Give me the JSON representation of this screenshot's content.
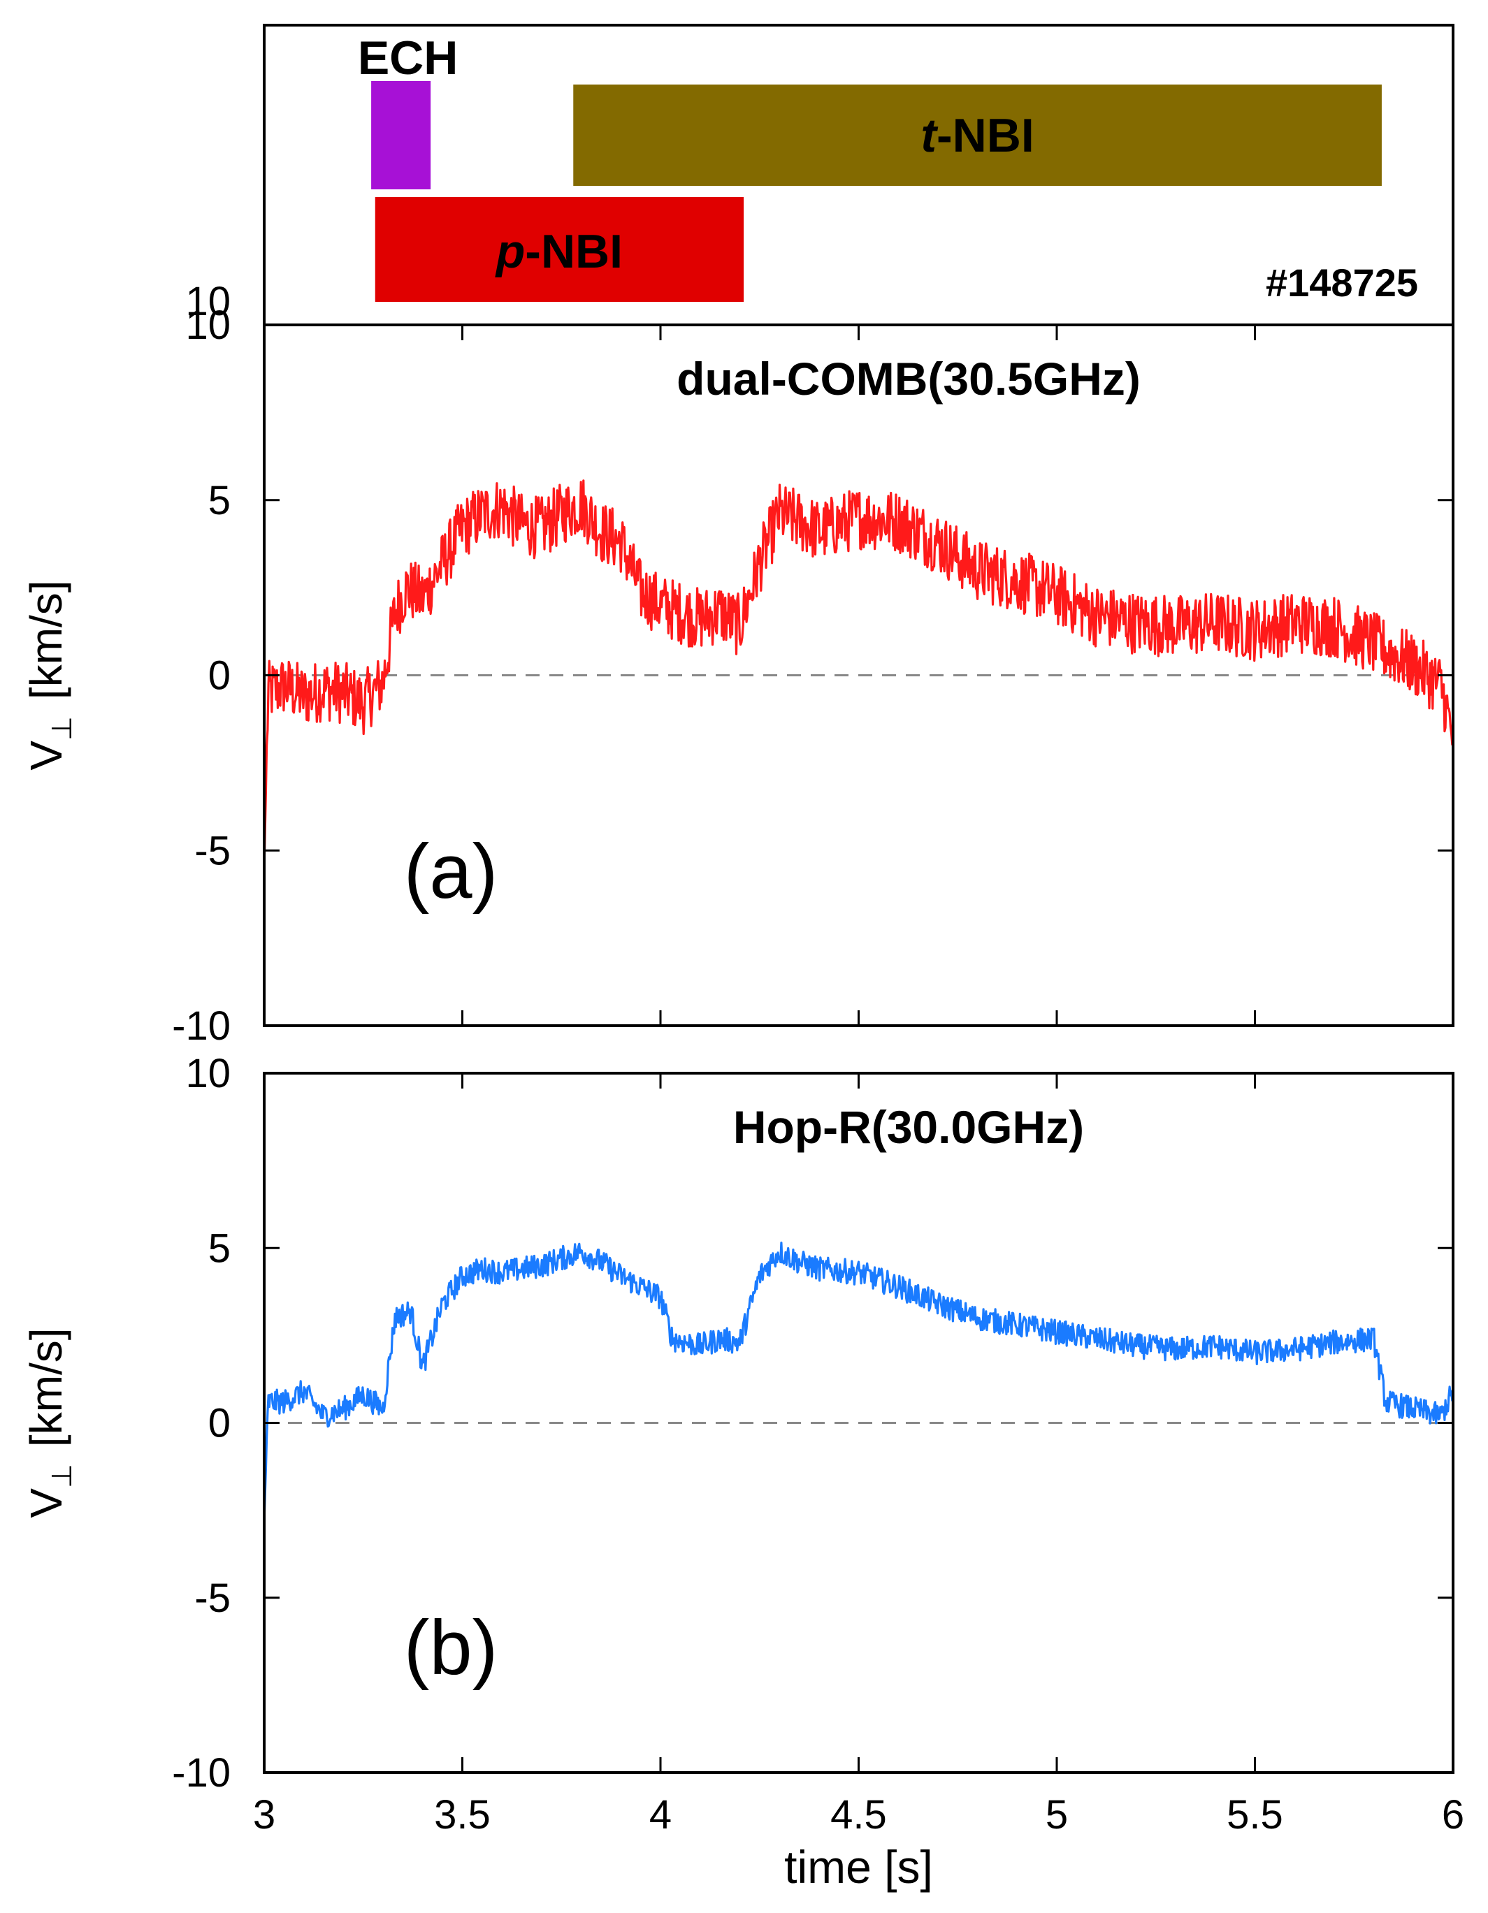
{
  "figure": {
    "shot_label": "#148725",
    "xlabel": "time [s]",
    "ylabel_main": "V",
    "ylabel_sub": "⊥",
    "ylabel_unit": "[km/s]"
  },
  "heating": {
    "ech": {
      "label": "ECH",
      "start": 3.27,
      "end": 3.42,
      "color": "#a711d6"
    },
    "pnbi": {
      "label_italic": "p",
      "label_rest": "-NBI",
      "start": 3.28,
      "end": 4.21,
      "color": "#e00000"
    },
    "tnbi": {
      "label_italic": "t",
      "label_rest": "-NBI",
      "start": 3.78,
      "end": 5.82,
      "color": "#836a00"
    }
  },
  "chart_data": [
    {
      "type": "line",
      "panel_label": "(a)",
      "title": "dual-COMB(30.5GHz)",
      "xlabel": "time [s]",
      "ylabel": "V⊥ [km/s]",
      "xlim": [
        3,
        6
      ],
      "ylim": [
        -10,
        10
      ],
      "xticks": [
        "3",
        "3.5",
        "4",
        "4.5",
        "5",
        "5.5",
        "6"
      ],
      "yticks": [
        "-10",
        "-5",
        "0",
        "5",
        "10"
      ],
      "reference_line": 0,
      "series": [
        {
          "name": "dual-COMB(30.5GHz)",
          "color": "#ff1a1a",
          "noise": 0.9,
          "x": [
            3.0,
            3.01,
            3.05,
            3.1,
            3.15,
            3.2,
            3.25,
            3.3,
            3.33,
            3.36,
            3.4,
            3.45,
            3.5,
            3.55,
            3.6,
            3.65,
            3.7,
            3.75,
            3.8,
            3.85,
            3.9,
            3.95,
            4.0,
            4.05,
            4.1,
            4.15,
            4.2,
            4.25,
            4.3,
            4.35,
            4.4,
            4.5,
            4.6,
            4.7,
            4.8,
            4.9,
            5.0,
            5.1,
            5.2,
            5.3,
            5.4,
            5.5,
            5.6,
            5.7,
            5.8,
            5.9,
            5.97,
            6.0
          ],
          "y": [
            -5.5,
            -0.5,
            -0.3,
            -0.6,
            -0.4,
            -0.5,
            -0.8,
            -0.2,
            1.8,
            2.5,
            2.2,
            3.2,
            4.2,
            4.6,
            4.8,
            4.3,
            4.2,
            4.6,
            4.9,
            4.1,
            3.8,
            2.4,
            2.0,
            1.8,
            1.6,
            1.8,
            1.4,
            3.2,
            4.6,
            4.4,
            4.1,
            4.5,
            4.4,
            3.8,
            3.0,
            2.7,
            2.3,
            1.7,
            1.5,
            1.4,
            1.5,
            1.3,
            1.5,
            1.4,
            0.9,
            0.3,
            -0.3,
            -1.8
          ]
        }
      ]
    },
    {
      "type": "line",
      "panel_label": "(b)",
      "title": "Hop-R(30.0GHz)",
      "xlabel": "time [s]",
      "ylabel": "V⊥ [km/s]",
      "xlim": [
        3,
        6
      ],
      "ylim": [
        -10,
        10
      ],
      "xticks": [
        "3",
        "3.5",
        "4",
        "4.5",
        "5",
        "5.5",
        "6"
      ],
      "yticks": [
        "-10",
        "-5",
        "0",
        "5",
        "10"
      ],
      "reference_line": 0,
      "series": [
        {
          "name": "Hop-R(30.0GHz)",
          "color": "#1a7bff",
          "noise": 0.35,
          "x": [
            3.0,
            3.01,
            3.05,
            3.1,
            3.15,
            3.2,
            3.25,
            3.3,
            3.33,
            3.37,
            3.4,
            3.45,
            3.5,
            3.55,
            3.6,
            3.7,
            3.8,
            3.85,
            3.9,
            3.95,
            4.0,
            4.03,
            4.1,
            4.15,
            4.2,
            4.25,
            4.3,
            4.35,
            4.4,
            4.5,
            4.6,
            4.7,
            4.8,
            4.9,
            5.0,
            5.1,
            5.2,
            5.3,
            5.4,
            5.5,
            5.6,
            5.7,
            5.8,
            5.83,
            5.9,
            5.97,
            6.0
          ],
          "y": [
            -2.8,
            0.6,
            0.6,
            0.9,
            0.2,
            0.4,
            0.8,
            0.4,
            3.0,
            3.2,
            1.6,
            3.4,
            4.2,
            4.4,
            4.3,
            4.5,
            4.9,
            4.6,
            4.2,
            3.9,
            3.6,
            2.4,
            2.2,
            2.4,
            2.3,
            4.2,
            4.9,
            4.6,
            4.4,
            4.3,
            3.9,
            3.4,
            3.0,
            2.8,
            2.6,
            2.4,
            2.2,
            2.1,
            2.2,
            2.0,
            2.1,
            2.3,
            2.4,
            0.6,
            0.4,
            0.2,
            0.9
          ]
        }
      ]
    }
  ]
}
